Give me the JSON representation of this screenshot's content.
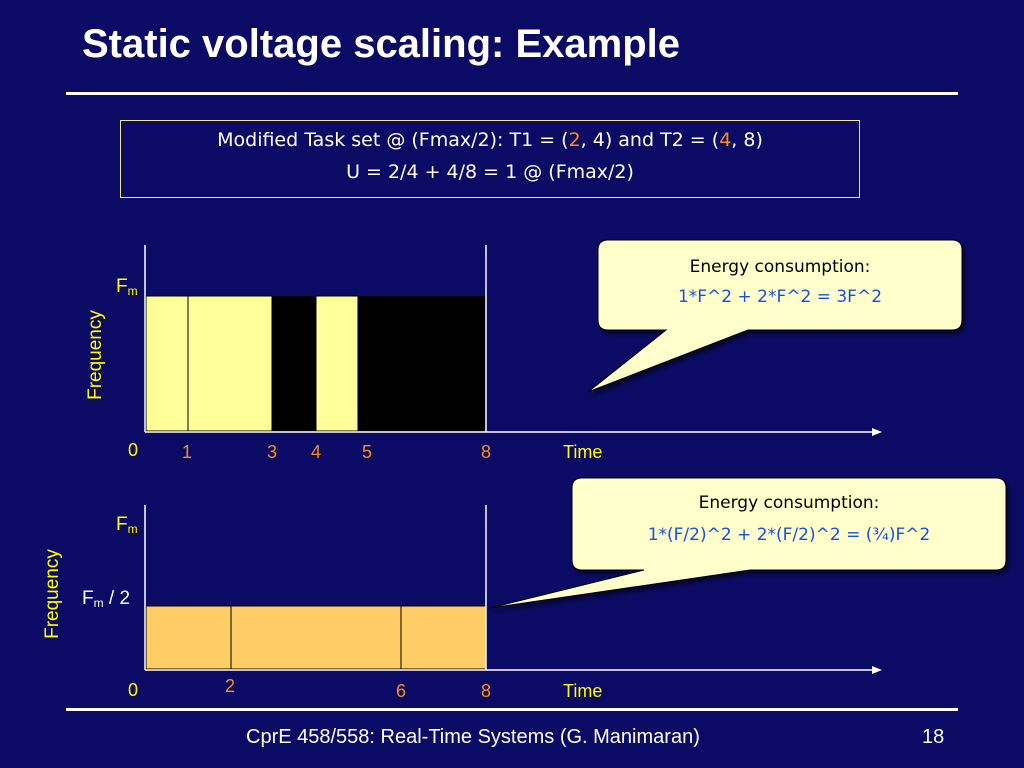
{
  "slide": {
    "title": "Static voltage scaling: Example",
    "footer_text": "CprE 458/558: Real-Time Systems (G. Manimaran)",
    "page_number": "18"
  },
  "task_box": {
    "line1_prefix": "Modified Task set @ (Fmax/2): T1 = (",
    "line1_t1_exec": "2",
    "line1_mid": ", 4) and T2 = (",
    "line1_t2_exec": "4",
    "line1_suffix": ", 8)",
    "line2": "U = 2/4 + 4/8 = 1 @ (Fmax/2)"
  },
  "diagram1": {
    "y_label": "Frequency",
    "y_tick_top": "F",
    "y_tick_top_sub": "m",
    "origin_label": "0",
    "x_label": "Time",
    "x_ticks": [
      "1",
      "3",
      "4",
      "5",
      "8"
    ],
    "callout_title": "Energy consumption:",
    "callout_formula": "1*F^2 + 2*F^2 = 3F^2"
  },
  "diagram2": {
    "y_label": "Frequency",
    "y_tick_top": "F",
    "y_tick_top_sub": "m",
    "y_tick_half": "F",
    "y_tick_half_sub": "m",
    "y_tick_half_suffix": " / 2",
    "origin_label": "0",
    "x_label": "Time",
    "x_ticks": [
      "2",
      "6",
      "8"
    ],
    "callout_title": "Energy consumption:",
    "callout_formula": "1*(F/2)^2 + 2*(F/2)^2 = (¾)F^2"
  },
  "colors": {
    "background": "#0b0b66",
    "busy_full_speed": "#ffff99",
    "busy_half_speed": "#ffcc66",
    "idle": "#000000",
    "label": "#ffff00",
    "tick": "#ff8c1a",
    "formula": "#1a4fd6",
    "callout_fill": "#ffffcc"
  }
}
